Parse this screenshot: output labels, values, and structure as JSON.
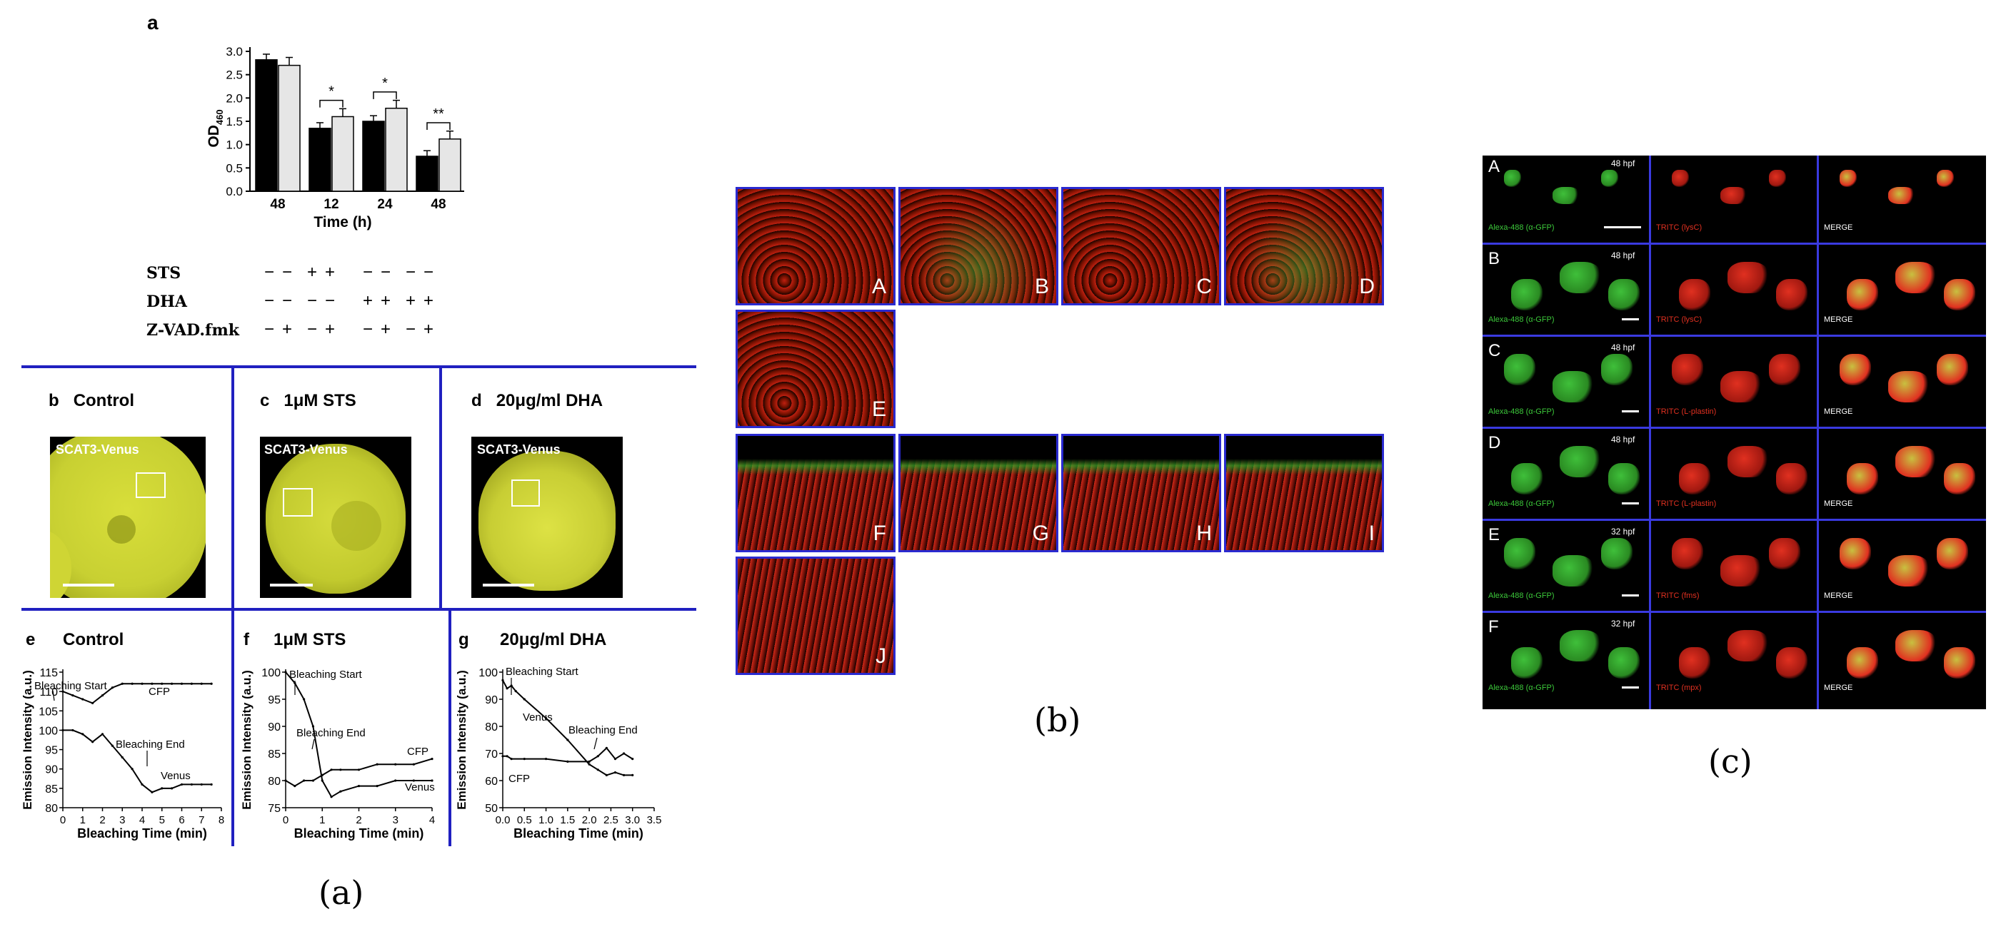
{
  "panel_a": {
    "caption": "(a)",
    "top": {
      "letter": "a",
      "ylabel": "OD",
      "ylabel_sub": "460",
      "xlabel": "Time (h)",
      "yticks": [
        "0.0",
        "0.5",
        "1.0",
        "1.5",
        "2.0",
        "2.5",
        "3.0"
      ],
      "xticks": [
        "48",
        "12",
        "24",
        "48"
      ],
      "sig": [
        "*",
        "*",
        "**"
      ],
      "treatments": [
        {
          "name": "STS",
          "signs": [
            "−",
            "−",
            "+",
            "+",
            "−",
            "−",
            "−",
            "−"
          ]
        },
        {
          "name": "DHA",
          "signs": [
            "−",
            "−",
            "−",
            "−",
            "+",
            "+",
            "+",
            "+"
          ]
        },
        {
          "name": "Z-VAD.fmk",
          "signs": [
            "−",
            "+",
            "−",
            "+",
            "−",
            "+",
            "−",
            "+"
          ]
        }
      ]
    },
    "images": [
      {
        "letter": "b",
        "title": "Control",
        "label": "SCAT3-Venus"
      },
      {
        "letter": "c",
        "title": "1μM STS",
        "label": "SCAT3-Venus"
      },
      {
        "letter": "d",
        "title": "20μg/ml DHA",
        "label": "SCAT3-Venus"
      }
    ],
    "traces": [
      {
        "letter": "e",
        "title": "Control",
        "ylabel": "Emission Intensity (a.u.)",
        "xlabel": "Bleaching Time (min)",
        "yticks": [
          "80",
          "85",
          "90",
          "95",
          "100",
          "105",
          "110",
          "115"
        ],
        "xticks": [
          "0",
          "1",
          "2",
          "3",
          "4",
          "5",
          "6",
          "7",
          "8"
        ],
        "annotations": [
          "Bleaching Start",
          "CFP",
          "Bleaching End",
          "Venus"
        ]
      },
      {
        "letter": "f",
        "title": "1μM STS",
        "ylabel": "Emission Intensity (a.u.)",
        "xlabel": "Bleaching Time (min)",
        "yticks": [
          "75",
          "80",
          "85",
          "90",
          "95",
          "100"
        ],
        "xticks": [
          "0",
          "1",
          "2",
          "3",
          "4"
        ],
        "annotations": [
          "Bleaching Start",
          "Bleaching End",
          "CFP",
          "Venus"
        ]
      },
      {
        "letter": "g",
        "title": "20μg/ml DHA",
        "ylabel": "Emission Intensity (a.u.)",
        "xlabel": "Bleaching Time (min)",
        "yticks": [
          "50",
          "60",
          "70",
          "80",
          "90",
          "100"
        ],
        "xticks": [
          "0.0",
          "0.5",
          "1.0",
          "1.5",
          "2.0",
          "2.5",
          "3.0",
          "3.5"
        ],
        "annotations": [
          "Bleaching Start",
          "Venus",
          "Bleaching End",
          "CFP"
        ]
      }
    ]
  },
  "panel_b": {
    "caption": "(b)",
    "cells": [
      "A",
      "B",
      "C",
      "D",
      "E",
      "F",
      "G",
      "H",
      "I",
      "J"
    ]
  },
  "panel_c": {
    "caption": "(c)",
    "rows": [
      {
        "letter": "A",
        "time": "48 hpf",
        "green": "Alexa-488 (α-GFP)",
        "red": "TRITC (lysC)",
        "merge": "MERGE"
      },
      {
        "letter": "B",
        "time": "48 hpf",
        "green": "Alexa-488 (α-GFP)",
        "red": "TRITC (lysC)",
        "merge": "MERGE"
      },
      {
        "letter": "C",
        "time": "48 hpf",
        "green": "Alexa-488 (α-GFP)",
        "red": "TRITC (L-plastin)",
        "merge": "MERGE"
      },
      {
        "letter": "D",
        "time": "48 hpf",
        "green": "Alexa-488 (α-GFP)",
        "red": "TRITC (L-plastin)",
        "merge": "MERGE"
      },
      {
        "letter": "E",
        "time": "32 hpf",
        "green": "Alexa-488 (α-GFP)",
        "red": "TRITC (fms)",
        "merge": "MERGE"
      },
      {
        "letter": "F",
        "time": "32 hpf",
        "green": "Alexa-488 (α-GFP)",
        "red": "TRITC (mpx)",
        "merge": "MERGE"
      }
    ]
  },
  "chart_data": [
    {
      "type": "bar",
      "categories": [
        "48",
        "12",
        "24",
        "48"
      ],
      "xlabel": "Time (h)",
      "ylabel": "OD460",
      "ylim": [
        0,
        3.0
      ],
      "series": [
        {
          "values": [
            2.82,
            1.35,
            1.5,
            0.75
          ],
          "color": "#000000"
        },
        {
          "values": [
            2.7,
            1.6,
            1.78,
            1.12
          ],
          "color": "#e6e6e6"
        }
      ]
    },
    {
      "type": "line",
      "title": "Control",
      "xlabel": "Bleaching Time (min)",
      "ylabel": "Emission Intensity (a.u.)",
      "xlim": [
        0,
        8
      ],
      "ylim": [
        80,
        115
      ],
      "series": [
        {
          "name": "CFP",
          "x": [
            0,
            0.5,
            1,
            1.5,
            2,
            2.5,
            3,
            3.5,
            4,
            4.5,
            5,
            5.5,
            6,
            6.5,
            7,
            7.5
          ],
          "values": [
            110,
            109,
            108,
            107,
            109,
            111,
            112,
            112,
            112,
            112,
            112,
            112,
            112,
            112,
            112,
            112
          ]
        },
        {
          "name": "Venus",
          "x": [
            0,
            0.5,
            1,
            1.5,
            2,
            2.5,
            3,
            3.5,
            4,
            4.5,
            5,
            5.5,
            6,
            6.5,
            7,
            7.5
          ],
          "values": [
            100,
            100,
            99,
            97,
            99,
            96,
            93,
            90,
            86,
            84,
            85,
            85,
            86,
            86,
            86,
            86
          ]
        }
      ]
    },
    {
      "type": "line",
      "title": "1μM STS",
      "xlabel": "Bleaching Time (min)",
      "ylabel": "Emission Intensity (a.u.)",
      "xlim": [
        0,
        4
      ],
      "ylim": [
        75,
        100
      ],
      "series": [
        {
          "name": "CFP",
          "x": [
            0,
            0.25,
            0.5,
            0.75,
            1,
            1.25,
            1.5,
            2,
            2.5,
            3,
            3.5,
            4
          ],
          "values": [
            80,
            79,
            80,
            80,
            81,
            82,
            82,
            82,
            83,
            83,
            83,
            84
          ]
        },
        {
          "name": "Venus",
          "x": [
            0,
            0.25,
            0.5,
            0.75,
            1,
            1.25,
            1.5,
            2,
            2.5,
            3,
            3.5,
            4
          ],
          "values": [
            100,
            98,
            95,
            90,
            80,
            77,
            78,
            79,
            79,
            80,
            80,
            80
          ]
        }
      ]
    },
    {
      "type": "line",
      "title": "20μg/ml DHA",
      "xlabel": "Bleaching Time (min)",
      "ylabel": "Emission Intensity (a.u.)",
      "xlim": [
        0,
        3.5
      ],
      "ylim": [
        50,
        100
      ],
      "series": [
        {
          "name": "Venus",
          "x": [
            0,
            0.1,
            0.2,
            0.3,
            0.5,
            1,
            1.5,
            2,
            2.2,
            2.4,
            2.6,
            2.8,
            3.0
          ],
          "values": [
            97,
            94,
            95,
            93,
            90,
            83,
            75,
            66,
            64,
            62,
            63,
            62,
            62
          ]
        },
        {
          "name": "CFP",
          "x": [
            0,
            0.1,
            0.2,
            0.5,
            1,
            1.5,
            2,
            2.2,
            2.4,
            2.6,
            2.8,
            3.0
          ],
          "values": [
            69,
            69,
            68,
            68,
            68,
            67,
            67,
            69,
            72,
            68,
            70,
            68
          ]
        }
      ]
    }
  ]
}
